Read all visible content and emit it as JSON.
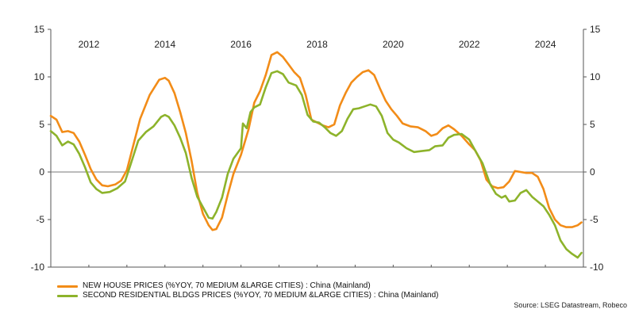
{
  "chart_data": {
    "type": "line",
    "title": "",
    "xlabel": "",
    "ylabel": "",
    "ylim": [
      -10,
      15
    ],
    "xlim": [
      2011.0,
      2025.0
    ],
    "y_ticks": [
      "15",
      "10",
      "5",
      "0",
      "-5",
      "-10"
    ],
    "x_tick_labels": [
      "2012",
      "2014",
      "2016",
      "2018",
      "2020",
      "2022",
      "2024"
    ],
    "zero_line": true,
    "series": [
      {
        "name": "NEW HOUSE PRICES (%YOY, 70 MEDIUM &LARGE CITIES) : China (Mainland)",
        "color": "#f28c18",
        "x": [
          2011.0,
          2011.15,
          2011.3,
          2011.45,
          2011.6,
          2011.75,
          2011.9,
          2012.05,
          2012.2,
          2012.35,
          2012.5,
          2012.7,
          2012.85,
          2013.0,
          2013.15,
          2013.35,
          2013.6,
          2013.85,
          2014.0,
          2014.1,
          2014.25,
          2014.4,
          2014.55,
          2014.7,
          2014.85,
          2015.0,
          2015.15,
          2015.25,
          2015.35,
          2015.5,
          2015.65,
          2015.8,
          2016.0,
          2016.2,
          2016.35,
          2016.5,
          2016.65,
          2016.8,
          2016.95,
          2017.1,
          2017.25,
          2017.4,
          2017.55,
          2017.7,
          2017.85,
          2018.0,
          2018.15,
          2018.3,
          2018.45,
          2018.6,
          2018.75,
          2018.9,
          2019.05,
          2019.2,
          2019.35,
          2019.5,
          2019.65,
          2019.8,
          2019.95,
          2020.1,
          2020.25,
          2020.45,
          2020.65,
          2020.85,
          2021.0,
          2021.15,
          2021.3,
          2021.45,
          2021.6,
          2021.8,
          2022.0,
          2022.15,
          2022.3,
          2022.45,
          2022.6,
          2022.75,
          2022.9,
          2023.05,
          2023.2,
          2023.35,
          2023.5,
          2023.65,
          2023.8,
          2023.95,
          2024.1,
          2024.25,
          2024.4,
          2024.55,
          2024.7,
          2024.85,
          2024.95
        ],
        "values": [
          5.9,
          5.5,
          4.2,
          4.3,
          4.1,
          3.2,
          1.8,
          0.3,
          -0.8,
          -1.4,
          -1.5,
          -1.3,
          -0.9,
          0.2,
          2.5,
          5.6,
          8.1,
          9.7,
          9.9,
          9.6,
          8.3,
          6.3,
          4.1,
          1.2,
          -2.2,
          -4.4,
          -5.6,
          -6.1,
          -6.0,
          -4.8,
          -2.4,
          -0.2,
          1.8,
          4.5,
          7.3,
          8.5,
          10.2,
          12.3,
          12.6,
          12.1,
          11.3,
          10.5,
          9.9,
          8.1,
          5.5,
          5.2,
          4.9,
          4.7,
          5.0,
          7.0,
          8.3,
          9.4,
          10.0,
          10.5,
          10.7,
          10.2,
          8.8,
          7.5,
          6.6,
          5.9,
          5.1,
          4.8,
          4.7,
          4.3,
          3.8,
          4.0,
          4.6,
          4.9,
          4.5,
          3.8,
          2.9,
          2.3,
          1.2,
          -0.8,
          -1.5,
          -1.7,
          -1.6,
          -1.0,
          0.1,
          0.0,
          -0.1,
          -0.1,
          -0.5,
          -1.8,
          -3.8,
          -5.0,
          -5.6,
          -5.8,
          -5.8,
          -5.6,
          -5.3
        ]
      },
      {
        "name": "SECOND RESIDENTIAL BLDGS PRICES (%YOY, 70 MEDIUM &LARGE CITIES) : China (Mainland)",
        "color": "#8db32b",
        "x": [
          2011.0,
          2011.15,
          2011.3,
          2011.45,
          2011.6,
          2011.75,
          2011.9,
          2012.05,
          2012.2,
          2012.35,
          2012.55,
          2012.75,
          2012.95,
          2013.1,
          2013.3,
          2013.5,
          2013.7,
          2013.9,
          2014.0,
          2014.1,
          2014.25,
          2014.4,
          2014.55,
          2014.7,
          2014.85,
          2015.0,
          2015.15,
          2015.25,
          2015.35,
          2015.5,
          2015.65,
          2015.8,
          2016.0,
          2016.05,
          2016.15,
          2016.25,
          2016.35,
          2016.5,
          2016.65,
          2016.8,
          2016.95,
          2017.1,
          2017.25,
          2017.45,
          2017.6,
          2017.75,
          2017.9,
          2018.05,
          2018.2,
          2018.35,
          2018.5,
          2018.65,
          2018.8,
          2018.95,
          2019.1,
          2019.25,
          2019.4,
          2019.55,
          2019.7,
          2019.85,
          2020.0,
          2020.15,
          2020.35,
          2020.55,
          2020.75,
          2020.95,
          2021.1,
          2021.3,
          2021.45,
          2021.6,
          2021.8,
          2022.0,
          2022.15,
          2022.35,
          2022.55,
          2022.7,
          2022.85,
          2022.95,
          2023.05,
          2023.2,
          2023.35,
          2023.5,
          2023.65,
          2023.8,
          2023.95,
          2024.1,
          2024.25,
          2024.4,
          2024.55,
          2024.7,
          2024.85,
          2024.95
        ],
        "values": [
          4.3,
          3.8,
          2.8,
          3.2,
          2.9,
          1.9,
          0.5,
          -1.1,
          -1.8,
          -2.2,
          -2.1,
          -1.7,
          -1.0,
          0.8,
          3.3,
          4.2,
          4.8,
          5.8,
          6.0,
          5.8,
          4.9,
          3.6,
          2.0,
          -0.6,
          -2.6,
          -3.7,
          -4.8,
          -4.9,
          -4.2,
          -2.7,
          -0.2,
          1.4,
          2.5,
          5.1,
          4.6,
          6.3,
          6.8,
          7.1,
          8.9,
          10.4,
          10.6,
          10.3,
          9.4,
          9.1,
          8.1,
          6.0,
          5.3,
          5.2,
          4.7,
          4.1,
          3.8,
          4.3,
          5.6,
          6.6,
          6.7,
          6.9,
          7.1,
          6.9,
          5.9,
          4.1,
          3.4,
          3.1,
          2.5,
          2.1,
          2.2,
          2.3,
          2.7,
          2.8,
          3.6,
          3.9,
          4.0,
          3.4,
          2.3,
          0.9,
          -1.3,
          -2.3,
          -2.7,
          -2.5,
          -3.1,
          -3.0,
          -2.2,
          -1.9,
          -2.6,
          -3.1,
          -3.6,
          -4.5,
          -5.6,
          -7.2,
          -8.1,
          -8.6,
          -9.0,
          -8.5
        ]
      }
    ],
    "legend_position": "bottom-left",
    "source_text": "Source: LSEG Datastream, Robeco"
  }
}
